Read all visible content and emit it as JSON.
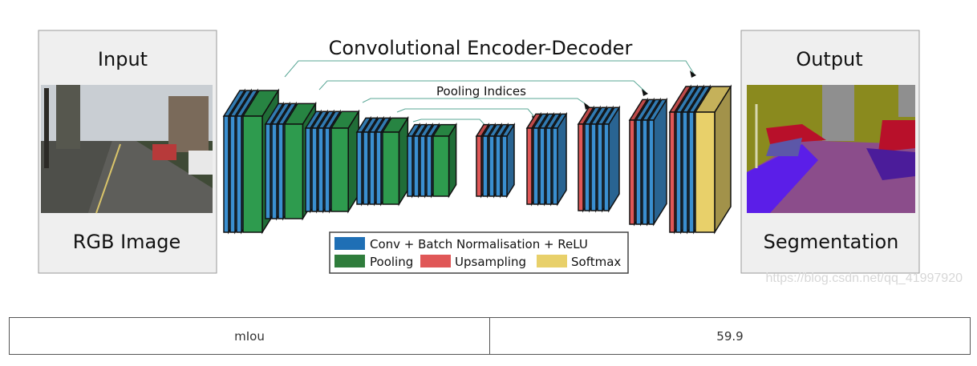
{
  "diagram": {
    "title": "Convolutional Encoder-Decoder",
    "input": {
      "title": "Input",
      "caption": "RGB Image",
      "image_icon": "street-scene-photo"
    },
    "output": {
      "title": "Output",
      "caption": "Segmentation",
      "image_icon": "segmentation-map"
    },
    "skip_label": "Pooling Indices",
    "legend": {
      "conv": "Conv + Batch Normalisation + ReLU",
      "pool": "Pooling",
      "up": "Upsampling",
      "softmax": "Softmax"
    },
    "colors": {
      "conv": "#3a8fd0",
      "conv_legend": "#1f6fb5",
      "pool": "#2e9b4e",
      "pool_legend": "#2f7d3c",
      "up": "#e05757",
      "softmax": "#e8d06a",
      "panel_bg": "#efefef"
    },
    "watermark": "https://blog.csdn.net/qq_41997920"
  },
  "table": {
    "metric": "mIou",
    "value": "59.9"
  }
}
